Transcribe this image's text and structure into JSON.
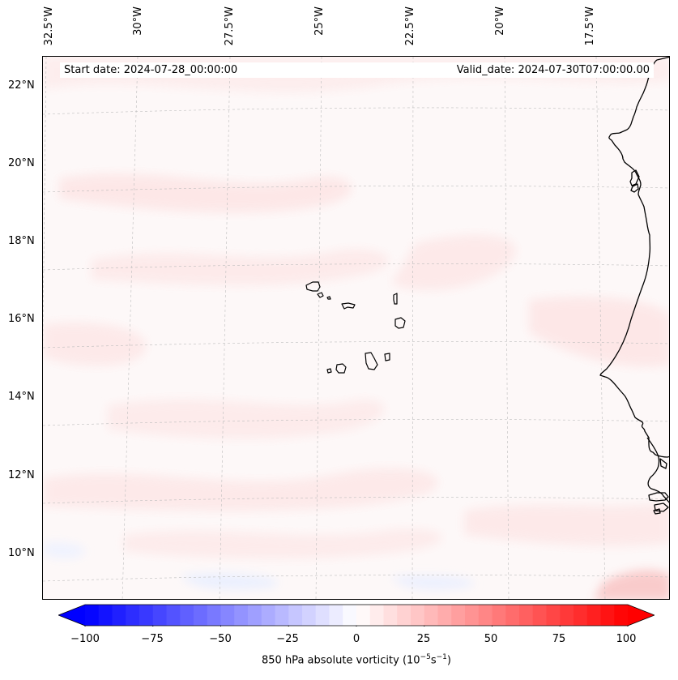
{
  "map": {
    "start_date": "Start date: 2024-07-28_00:00:00",
    "valid_date": "Valid_date: 2024-07-30T07:00:00.00",
    "lat_labels": [
      "22°N",
      "20°N",
      "18°N",
      "16°N",
      "14°N",
      "12°N",
      "10°N"
    ],
    "lon_labels": [
      "32.5°W",
      "30°W",
      "27.5°W",
      "25°W",
      "22.5°W",
      "20°W",
      "17.5°W"
    ],
    "region": "Cape Verde islands and West African coast",
    "colors": {
      "coast": "#000000",
      "grid": "#bdbdbd",
      "field_bg": "#fdf8f8",
      "field_pos": "#fdebeb",
      "field_neg": "#eef2ff"
    }
  },
  "colorbar": {
    "label_text": "850 hPa absolute vorticity (10",
    "label_exp1": "−5",
    "label_mid": "s",
    "label_exp2": "−1",
    "label_close": ")",
    "ticks": [
      "−100",
      "−75",
      "−50",
      "−25",
      "0",
      "25",
      "50",
      "75",
      "100"
    ],
    "range": [
      -100,
      100
    ],
    "neg_color": "#0000ff",
    "mid_color": "#ffffff",
    "pos_color": "#ff0000",
    "levels": 40
  }
}
